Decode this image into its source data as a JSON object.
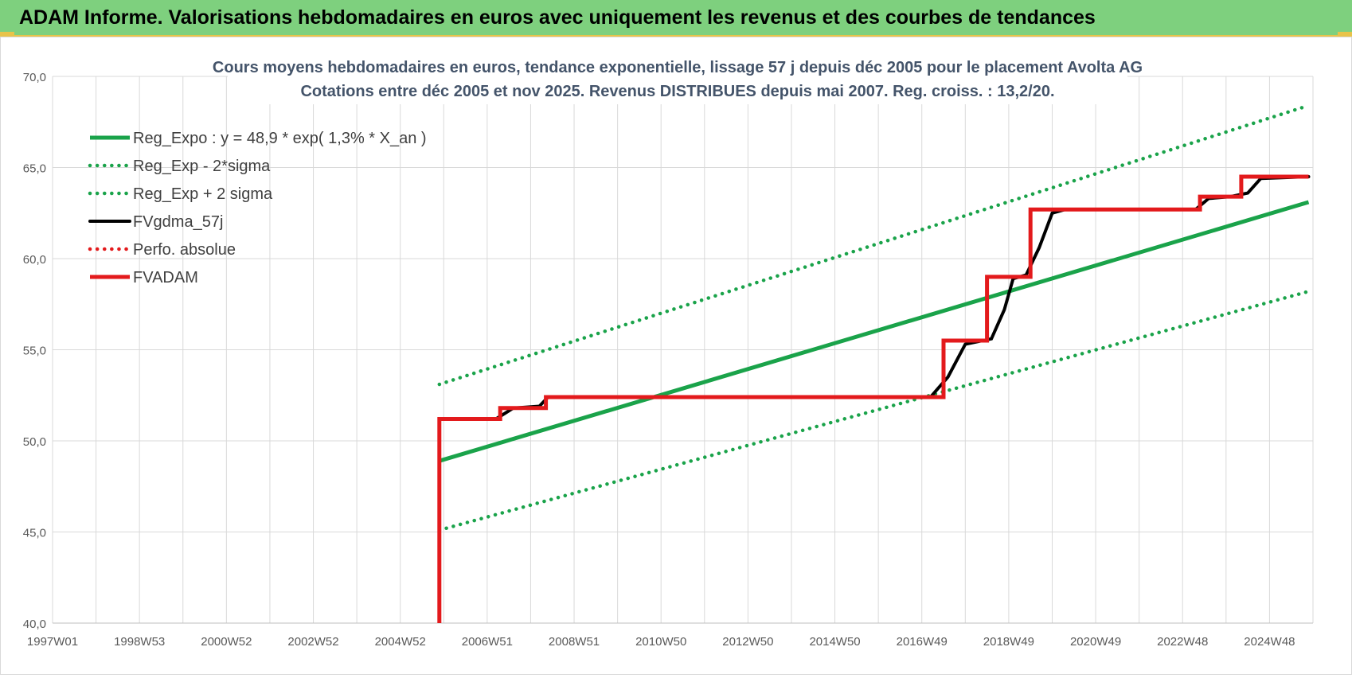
{
  "report": {
    "banner_title": "ADAM Informe. Valorisations hebdomadaires en euros avec uniquement les revenus et des courbes de tendances"
  },
  "colors": {
    "banner_bg": "#7ed07e",
    "accent_gold": "#e8c34a",
    "trend_green": "#1aa34a",
    "fv_black": "#000000",
    "adam_red": "#e31a1c",
    "grid": "#d9d9d9"
  },
  "chart_data": {
    "type": "line",
    "title": "Cours moyens hebdomadaires en euros, tendance exponentielle, lissage 57 j depuis déc 2005 pour le placement Avolta AG",
    "subtitle": "Cotations entre déc 2005 et nov 2025. Revenus DISTRIBUES depuis mai 2007. Reg. croiss. : 13,2/20.",
    "xlabel": "",
    "ylabel": "",
    "x_range": [
      1997.0,
      2026.0
    ],
    "ylim": [
      40,
      70
    ],
    "y_ticks": [
      "40,0",
      "45,0",
      "50,0",
      "55,0",
      "60,0",
      "65,0",
      "70,0"
    ],
    "y_tick_values": [
      40,
      45,
      50,
      55,
      60,
      65,
      70
    ],
    "x_tick_labels": [
      "1997W01",
      "1998W53",
      "2000W52",
      "2002W52",
      "2004W52",
      "2006W51",
      "2008W51",
      "2010W50",
      "2012W50",
      "2014W50",
      "2016W49",
      "2018W49",
      "2020W49",
      "2022W48",
      "2024W48"
    ],
    "x_tick_values": [
      1997,
      1999,
      2001,
      2003,
      2005,
      2007,
      2009,
      2011,
      2013,
      2015,
      2017,
      2019,
      2021,
      2023,
      2025
    ],
    "grid": true,
    "legend_position": "top-left",
    "series": [
      {
        "name": "Reg_Expo : y = 48,9 * exp( 1,3% *  X_an )",
        "style": "solid-thick",
        "color": "#1aa34a",
        "x": [
          2005.9,
          2025.9
        ],
        "y": [
          48.9,
          63.1
        ]
      },
      {
        "name": "Reg_Exp - 2*sigma",
        "style": "dotted",
        "color": "#1aa34a",
        "x": [
          2005.9,
          2025.9
        ],
        "y": [
          45.1,
          58.2
        ]
      },
      {
        "name": "Reg_Exp + 2 sigma",
        "style": "dotted",
        "color": "#1aa34a",
        "x": [
          2005.9,
          2025.9
        ],
        "y": [
          53.1,
          68.4
        ]
      },
      {
        "name": "FVgdma_57j",
        "style": "solid",
        "color": "#000000",
        "x": [
          2005.9,
          2007.2,
          2007.6,
          2008.2,
          2008.4,
          2017.2,
          2017.6,
          2018.0,
          2018.6,
          2018.9,
          2019.1,
          2019.4,
          2019.7,
          2020.0,
          2020.3,
          2023.3,
          2023.6,
          2024.1,
          2024.5,
          2024.8,
          2025.9
        ],
        "y": [
          51.2,
          51.2,
          51.8,
          51.9,
          52.4,
          52.4,
          53.5,
          55.3,
          55.6,
          57.2,
          58.9,
          59.1,
          60.6,
          62.5,
          62.7,
          62.7,
          63.3,
          63.4,
          63.6,
          64.4,
          64.5
        ]
      },
      {
        "name": "Perfo. absolue",
        "style": "dotted",
        "color": "#e31a1c",
        "x": [
          2005.9,
          2005.9
        ],
        "y": [
          51.2,
          51.2
        ]
      },
      {
        "name": "FVADAM",
        "style": "solid-thick",
        "color": "#e31a1c",
        "x": [
          2005.9,
          2005.9,
          2007.3,
          2007.3,
          2008.35,
          2008.35,
          2017.5,
          2017.5,
          2018.5,
          2018.5,
          2019.5,
          2019.5,
          2023.4,
          2023.4,
          2024.35,
          2024.35,
          2025.9
        ],
        "y": [
          40.0,
          51.2,
          51.2,
          51.8,
          51.8,
          52.4,
          52.4,
          55.5,
          55.5,
          59.0,
          59.0,
          62.7,
          62.7,
          63.4,
          63.4,
          64.5,
          64.5
        ]
      }
    ]
  }
}
